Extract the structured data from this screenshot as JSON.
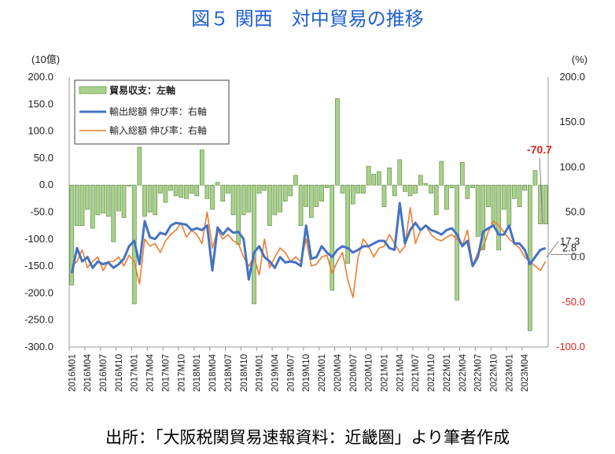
{
  "title": "図５ 関西　対中貿易の推移",
  "source": "出所：「大阪税関貿易速報資料：近畿圏」より筆者作成",
  "chart_data": {
    "type": "bar+line",
    "left_axis": {
      "unit": "(10億)",
      "ticks": [
        "200.0",
        "150.0",
        "100.0",
        "50.0",
        "0.0",
        "-50.0",
        "-100.0",
        "-150.0",
        "-200.0",
        "-250.0",
        "-300.0"
      ],
      "ylim": [
        -300,
        200
      ]
    },
    "right_axis": {
      "unit": "(%)",
      "ticks": [
        "200.0",
        "150.0",
        "100.0",
        "50.0",
        "0.0",
        "-50.0",
        "-100.0"
      ],
      "ylim": [
        -100,
        200
      ]
    },
    "x_ticks": [
      "2016M01",
      "2016M04",
      "2016M07",
      "2016M10",
      "2017M01",
      "2017M04",
      "2017M07",
      "2017M10",
      "2018M01",
      "2018M04",
      "2018M07",
      "2018M10",
      "2019M01",
      "2019M04",
      "2019M07",
      "2019M10",
      "2020M01",
      "2020M04",
      "2020M07",
      "2020M10",
      "2021M01",
      "2021M04",
      "2021M07",
      "2021M10",
      "2022M01",
      "2022M04",
      "2022M07",
      "2022M10",
      "2023M01",
      "2023M04"
    ],
    "colors": {
      "bar": "#a9d18e",
      "bar_edge": "#548235",
      "exports": "#4472c4",
      "imports": "#ed7d31",
      "title": "#1f5fd0",
      "highlight": "#e02020"
    },
    "legend": [
      "貿易収支：左軸",
      "輸出総額 伸び率：右軸",
      "輸入総額 伸び率：右軸"
    ],
    "series": [
      {
        "name": "貿易収支：左軸",
        "axis": "left",
        "kind": "bar",
        "values": [
          -185,
          -75,
          -75,
          -45,
          -80,
          -55,
          -52,
          -58,
          -105,
          -48,
          -60,
          -2,
          -220,
          70,
          -58,
          -50,
          -55,
          -15,
          -32,
          -10,
          -20,
          -23,
          -25,
          -15,
          -20,
          65,
          -25,
          -45,
          5,
          -30,
          -15,
          -55,
          -110,
          -55,
          -50,
          -220,
          -15,
          -10,
          -75,
          -55,
          -50,
          -30,
          -20,
          18,
          -75,
          -40,
          -60,
          -40,
          -30,
          -5,
          -195,
          160,
          -15,
          -145,
          -35,
          -15,
          -15,
          35,
          20,
          25,
          -40,
          32,
          -20,
          47,
          -12,
          -20,
          -15,
          18,
          3,
          -15,
          -55,
          44,
          -45,
          -5,
          -213,
          42,
          -25,
          -5,
          -95,
          -120,
          -40,
          -75,
          -120,
          -45,
          -75,
          -25,
          -40,
          -10,
          -270,
          27,
          -72,
          -72
        ]
      },
      {
        "name": "輸出総額 伸び率：右軸",
        "axis": "right",
        "kind": "line",
        "values": [
          -18,
          10,
          -5,
          0,
          -12,
          -5,
          -8,
          -6,
          -12,
          -8,
          -2,
          12,
          18,
          -8,
          40,
          22,
          20,
          27,
          25,
          35,
          38,
          37,
          36,
          30,
          32,
          30,
          35,
          -15,
          33,
          25,
          32,
          27,
          28,
          20,
          -25,
          5,
          12,
          0,
          -5,
          -12,
          0,
          -6,
          -5,
          -6,
          -10,
          35,
          -2,
          0,
          12,
          5,
          0,
          8,
          12,
          10,
          5,
          8,
          12,
          12,
          15,
          18,
          18,
          10,
          8,
          60,
          15,
          30,
          38,
          30,
          35,
          30,
          28,
          25,
          30,
          32,
          25,
          12,
          18,
          -10,
          0,
          28,
          32,
          35,
          25,
          25,
          35,
          15,
          15,
          8,
          -8,
          0,
          8,
          10
        ]
      },
      {
        "name": "輸入総額 伸び率：右軸",
        "axis": "right",
        "kind": "line",
        "values": [
          -10,
          -5,
          8,
          -12,
          -5,
          0,
          -15,
          -5,
          -5,
          0,
          -10,
          2,
          -5,
          -30,
          20,
          12,
          15,
          5,
          18,
          25,
          30,
          38,
          22,
          30,
          25,
          15,
          50,
          10,
          30,
          20,
          25,
          18,
          15,
          0,
          -10,
          0,
          -20,
          20,
          -12,
          0,
          10,
          5,
          -5,
          0,
          -5,
          20,
          -10,
          -8,
          0,
          2,
          -18,
          -5,
          5,
          -25,
          -45,
          0,
          20,
          12,
          0,
          10,
          12,
          25,
          15,
          5,
          12,
          55,
          15,
          30,
          35,
          25,
          20,
          18,
          22,
          25,
          20,
          12,
          30,
          -10,
          5,
          10,
          28,
          40,
          35,
          28,
          20,
          15,
          10,
          0,
          -5,
          -10,
          -15,
          -5
        ]
      }
    ],
    "annotations": [
      {
        "text": "-70.7",
        "color": "red"
      },
      {
        "text": "17.3"
      },
      {
        "text": "2.8"
      }
    ]
  }
}
